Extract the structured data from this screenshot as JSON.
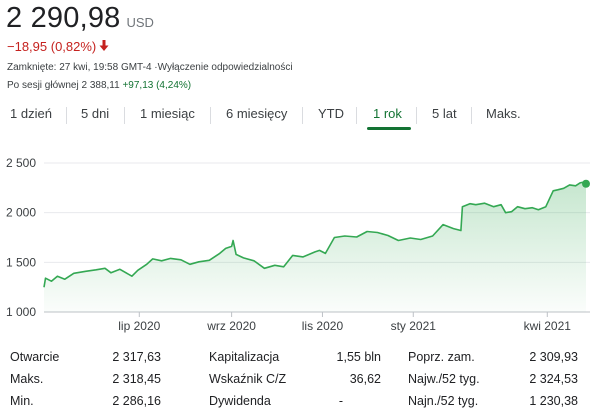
{
  "quote": {
    "price": "2 290,98",
    "currency": "USD",
    "change": "−18,95 (0,82%)",
    "change_color": "#c5221f",
    "closed_note": "Zamknięte: 27 kwi, 19:58 GMT-4 ·Wyłączenie odpowiedzialności",
    "after_hours_label": "Po sesji głównej 2 388,11",
    "after_hours_change": "+97,13 (4,24%)",
    "after_hours_color": "#137333"
  },
  "tabs": [
    {
      "label": "1 dzień",
      "active": false
    },
    {
      "label": "5 dni",
      "active": false
    },
    {
      "label": "1 miesiąc",
      "active": false
    },
    {
      "label": "6 miesięcy",
      "active": false
    },
    {
      "label": "YTD",
      "active": false
    },
    {
      "label": "1 rok",
      "active": true
    },
    {
      "label": "5 lat",
      "active": false
    },
    {
      "label": "Maks.",
      "active": false
    }
  ],
  "chart_data": {
    "type": "area",
    "line_color": "#34a853",
    "y_ticks": [
      {
        "value": 1000,
        "label": "1 000"
      },
      {
        "value": 1500,
        "label": "1 500"
      },
      {
        "value": 2000,
        "label": "2 000"
      },
      {
        "value": 2500,
        "label": "2 500"
      }
    ],
    "ylim": [
      1000,
      2500
    ],
    "grid": true,
    "x_ticks": [
      {
        "date": "2020-07-01",
        "label": "lip 2020"
      },
      {
        "date": "2020-09-01",
        "label": "wrz 2020"
      },
      {
        "date": "2020-11-01",
        "label": "lis 2020"
      },
      {
        "date": "2021-01-01",
        "label": "sty 2021"
      },
      {
        "date": "2021-04-01",
        "label": "kwi 2021"
      }
    ],
    "xlim": [
      "2020-04-28",
      "2021-04-27"
    ],
    "last_point": {
      "date": "2021-04-27",
      "value": 2291
    },
    "series": [
      {
        "values": [
          [
            "2020-04-28",
            1250
          ],
          [
            "2020-04-29",
            1340
          ],
          [
            "2020-05-03",
            1310
          ],
          [
            "2020-05-07",
            1360
          ],
          [
            "2020-05-12",
            1330
          ],
          [
            "2020-05-18",
            1390
          ],
          [
            "2020-05-26",
            1410
          ],
          [
            "2020-06-02",
            1425
          ],
          [
            "2020-06-08",
            1440
          ],
          [
            "2020-06-12",
            1395
          ],
          [
            "2020-06-18",
            1430
          ],
          [
            "2020-06-26",
            1360
          ],
          [
            "2020-06-30",
            1420
          ],
          [
            "2020-07-06",
            1480
          ],
          [
            "2020-07-10",
            1535
          ],
          [
            "2020-07-16",
            1515
          ],
          [
            "2020-07-22",
            1540
          ],
          [
            "2020-07-29",
            1525
          ],
          [
            "2020-08-04",
            1480
          ],
          [
            "2020-08-10",
            1505
          ],
          [
            "2020-08-17",
            1520
          ],
          [
            "2020-08-24",
            1590
          ],
          [
            "2020-08-28",
            1640
          ],
          [
            "2020-09-01",
            1660
          ],
          [
            "2020-09-02",
            1720
          ],
          [
            "2020-09-04",
            1580
          ],
          [
            "2020-09-09",
            1545
          ],
          [
            "2020-09-16",
            1515
          ],
          [
            "2020-09-23",
            1440
          ],
          [
            "2020-09-30",
            1470
          ],
          [
            "2020-10-06",
            1455
          ],
          [
            "2020-10-12",
            1570
          ],
          [
            "2020-10-19",
            1555
          ],
          [
            "2020-10-27",
            1605
          ],
          [
            "2020-10-30",
            1620
          ],
          [
            "2020-11-03",
            1590
          ],
          [
            "2020-11-09",
            1750
          ],
          [
            "2020-11-16",
            1765
          ],
          [
            "2020-11-24",
            1755
          ],
          [
            "2020-12-01",
            1810
          ],
          [
            "2020-12-08",
            1800
          ],
          [
            "2020-12-15",
            1770
          ],
          [
            "2020-12-22",
            1720
          ],
          [
            "2020-12-30",
            1745
          ],
          [
            "2021-01-06",
            1730
          ],
          [
            "2021-01-14",
            1765
          ],
          [
            "2021-01-21",
            1880
          ],
          [
            "2021-01-28",
            1840
          ],
          [
            "2021-02-02",
            1820
          ],
          [
            "2021-02-03",
            2060
          ],
          [
            "2021-02-08",
            2090
          ],
          [
            "2021-02-12",
            2080
          ],
          [
            "2021-02-18",
            2095
          ],
          [
            "2021-02-24",
            2060
          ],
          [
            "2021-03-01",
            2080
          ],
          [
            "2021-03-04",
            2000
          ],
          [
            "2021-03-08",
            2010
          ],
          [
            "2021-03-12",
            2060
          ],
          [
            "2021-03-17",
            2040
          ],
          [
            "2021-03-22",
            2050
          ],
          [
            "2021-03-26",
            2030
          ],
          [
            "2021-03-31",
            2060
          ],
          [
            "2021-04-05",
            2220
          ],
          [
            "2021-04-08",
            2230
          ],
          [
            "2021-04-12",
            2245
          ],
          [
            "2021-04-16",
            2280
          ],
          [
            "2021-04-20",
            2270
          ],
          [
            "2021-04-23",
            2300
          ],
          [
            "2021-04-26",
            2310
          ],
          [
            "2021-04-27",
            2291
          ]
        ]
      }
    ]
  },
  "stats": {
    "col1": [
      {
        "label": "Otwarcie",
        "value": "2 317,63"
      },
      {
        "label": "Maks.",
        "value": "2 318,45"
      },
      {
        "label": "Min.",
        "value": "2 286,16"
      }
    ],
    "col2": [
      {
        "label": "Kapitalizacja",
        "value": "1,55 bln"
      },
      {
        "label": "Wskaźnik C/Z",
        "value": "36,62"
      },
      {
        "label": "Dywidenda",
        "value": "-"
      }
    ],
    "col3": [
      {
        "label": "Poprz. zam.",
        "value": "2 309,93"
      },
      {
        "label": "Najw./52 tyg.",
        "value": "2 324,53"
      },
      {
        "label": "Najn./52 tyg.",
        "value": "1 230,38"
      }
    ]
  }
}
